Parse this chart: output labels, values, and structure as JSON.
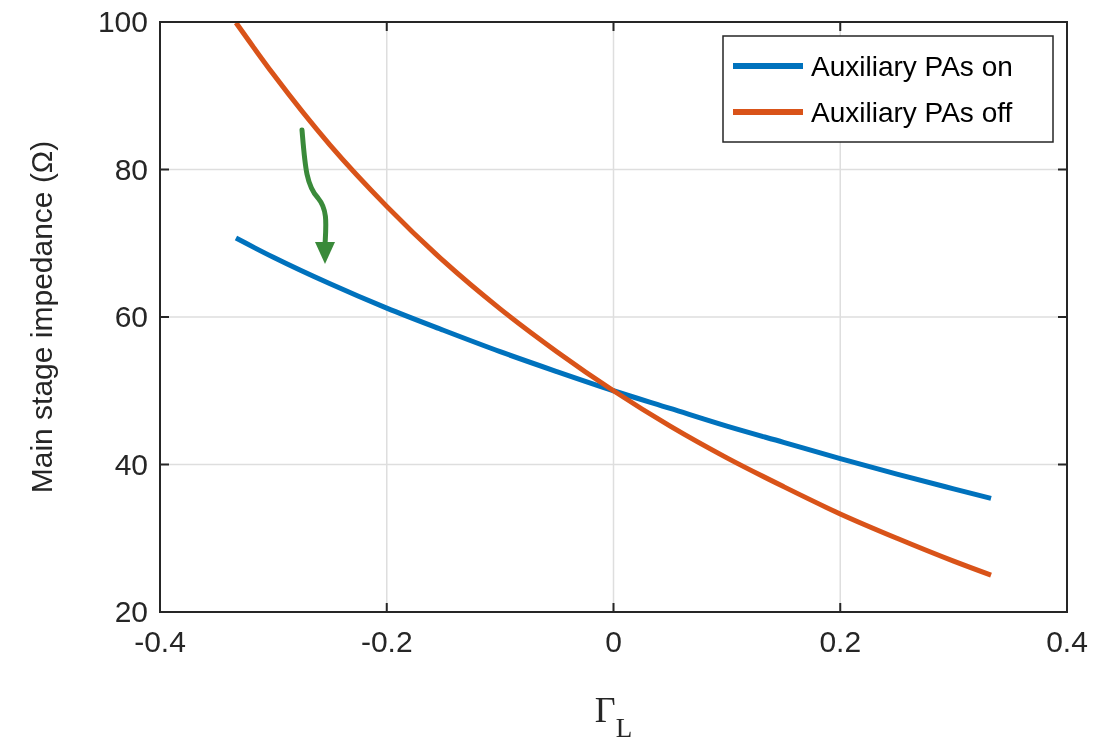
{
  "chart_data": {
    "type": "line",
    "xlabel": "Γ$_{L}$",
    "ylabel": "Main stage impedance (Ω)",
    "xlim": [
      -0.4,
      0.4
    ],
    "xticks": [
      -0.4,
      -0.2,
      0,
      0.2,
      0.4
    ],
    "ylim": [
      20,
      100
    ],
    "yticks": [
      20,
      40,
      60,
      80,
      100
    ],
    "grid": true,
    "legend": "top right",
    "line_style": "solid",
    "marker": "none",
    "series": [
      {
        "name": "Auxiliary PAs on",
        "color": "#0072bd",
        "x": [
          -0.333,
          -0.3,
          -0.25,
          -0.2,
          -0.15,
          -0.1,
          -0.05,
          0,
          0.05,
          0.1,
          0.15,
          0.2,
          0.25,
          0.3,
          0.333
        ],
        "values": [
          70.7,
          68.1,
          64.5,
          61.2,
          58.2,
          55.3,
          52.6,
          50,
          47.6,
          45.2,
          43.0,
          40.8,
          38.7,
          36.7,
          35.4
        ]
      },
      {
        "name": "Auxiliary PAs off",
        "color": "#d95319",
        "x": [
          -0.333,
          -0.3,
          -0.25,
          -0.2,
          -0.15,
          -0.1,
          -0.05,
          0,
          0.05,
          0.1,
          0.15,
          0.2,
          0.25,
          0.3,
          0.333
        ],
        "values": [
          99.9,
          92.9,
          83.3,
          75,
          67.6,
          61.1,
          55.3,
          50,
          45.2,
          40.9,
          37.0,
          33.3,
          30,
          26.9,
          25
        ]
      }
    ]
  }
}
